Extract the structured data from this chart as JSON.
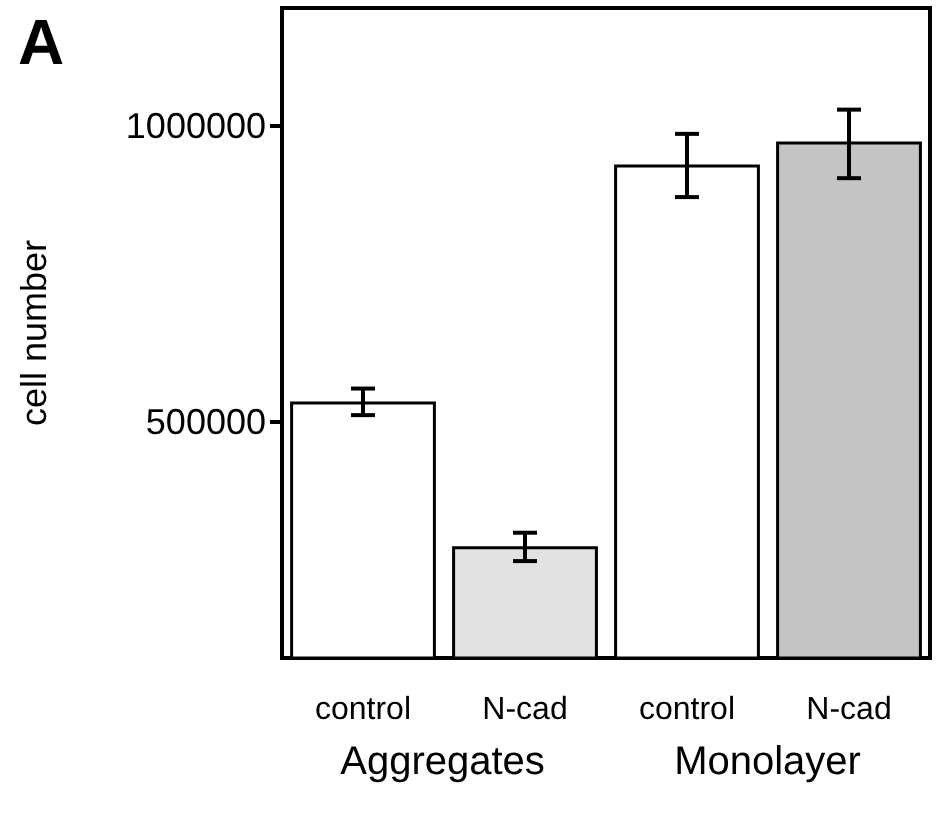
{
  "chart_data": {
    "type": "bar",
    "title": "A",
    "ylabel": "cell number",
    "categories": [
      "control",
      "N-cad",
      "control",
      "N-cad"
    ],
    "values": [
      534000,
      289000,
      935000,
      974000
    ],
    "colors": [
      "#ffffff",
      "#e2e2e2",
      "#ffffff",
      "#c4c4c4"
    ],
    "errors": [
      [
        511000,
        556000
      ],
      [
        264000,
        312000
      ],
      [
        880000,
        987000
      ],
      [
        912000,
        1028000
      ]
    ],
    "ylim": [
      100000,
      1200000
    ],
    "yticks": [
      500000,
      1000000
    ],
    "grid": false,
    "annotations": [
      "Aggregates",
      "Monolayer"
    ]
  }
}
